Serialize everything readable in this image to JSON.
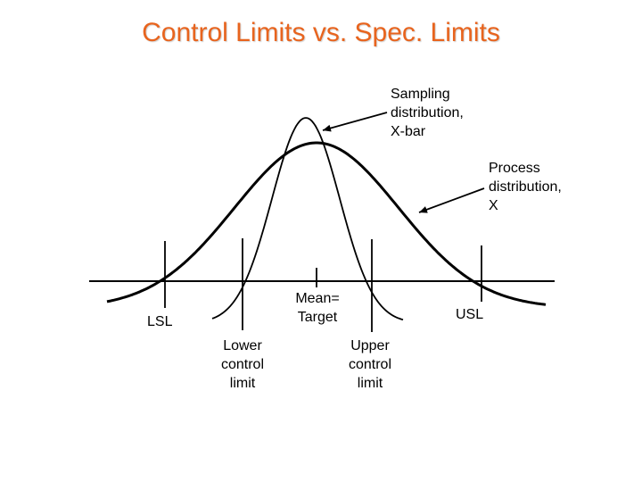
{
  "title": "Control Limits vs. Spec. Limits",
  "colors": {
    "title": "#e8641e",
    "line": "#000000"
  },
  "labels": {
    "sampling": [
      "Sampling",
      "distribution,",
      "X-bar"
    ],
    "process": [
      "Process",
      "distribution,",
      "X"
    ],
    "mean": [
      "Mean=",
      "Target"
    ],
    "lsl": "LSL",
    "usl": "USL",
    "lcl": [
      "Lower",
      "control",
      "limit"
    ],
    "ucl": [
      "Upper",
      "control",
      "limit"
    ]
  }
}
